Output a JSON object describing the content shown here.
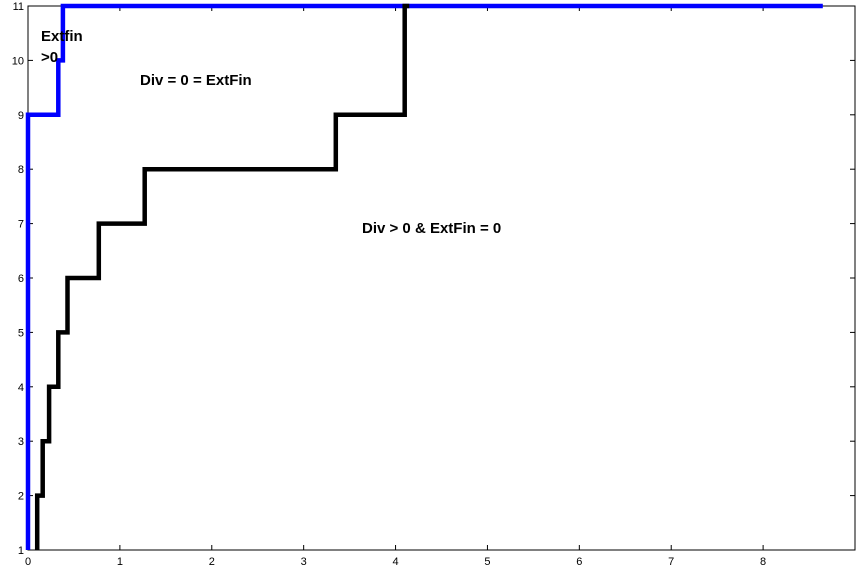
{
  "chart_data": {
    "type": "line",
    "title": "",
    "xlabel": "",
    "ylabel": "",
    "xlim": [
      0,
      9
    ],
    "ylim": [
      1,
      11
    ],
    "grid": false,
    "x_ticks": [
      0,
      1,
      2,
      3,
      4,
      5,
      6,
      7,
      8
    ],
    "y_ticks": [
      1,
      2,
      3,
      4,
      5,
      6,
      7,
      8,
      9,
      10,
      11
    ],
    "series": [
      {
        "color": "#0000ff",
        "style": "step",
        "points": [
          [
            0,
            1
          ],
          [
            0,
            9
          ],
          [
            0.33,
            9
          ],
          [
            0.33,
            10
          ],
          [
            0.38,
            10
          ],
          [
            0.38,
            11
          ],
          [
            8.65,
            11
          ]
        ]
      },
      {
        "color": "#000000",
        "style": "step",
        "points": [
          [
            0.1,
            1
          ],
          [
            0.1,
            2
          ],
          [
            0.16,
            2
          ],
          [
            0.16,
            3
          ],
          [
            0.23,
            3
          ],
          [
            0.23,
            4
          ],
          [
            0.33,
            4
          ],
          [
            0.33,
            5
          ],
          [
            0.43,
            5
          ],
          [
            0.43,
            6
          ],
          [
            0.77,
            6
          ],
          [
            0.77,
            7
          ],
          [
            1.27,
            7
          ],
          [
            1.27,
            8
          ],
          [
            3.35,
            8
          ],
          [
            3.35,
            9
          ],
          [
            4.1,
            9
          ],
          [
            4.1,
            11
          ],
          [
            4.15,
            11
          ]
        ]
      }
    ],
    "annotations": [
      {
        "line1": "Extfin",
        "line2": ">0"
      },
      {
        "text": "Div = 0 = ExtFin"
      },
      {
        "text": "Div > 0 & ExtFin = 0"
      }
    ]
  }
}
